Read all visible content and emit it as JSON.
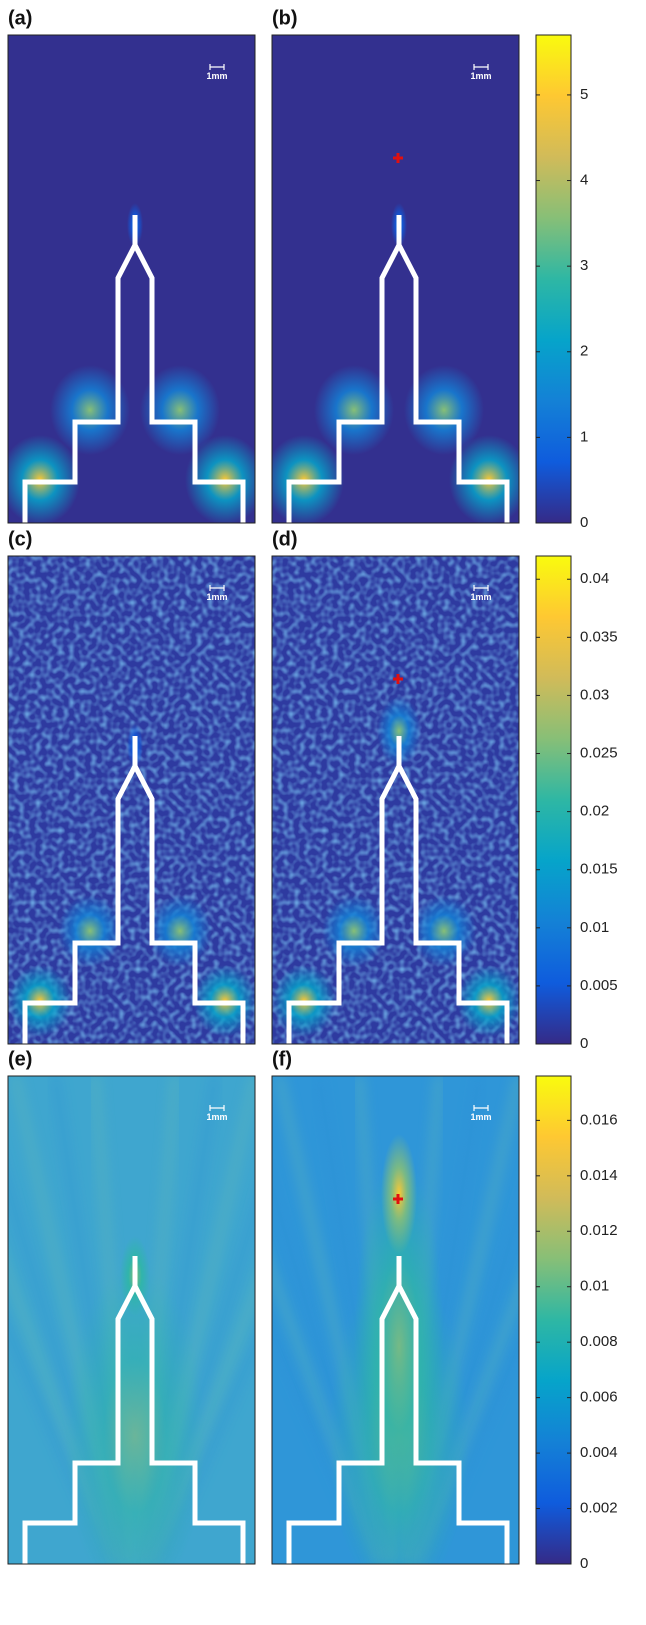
{
  "colormap": [
    "#352a87",
    "#0f5cdd",
    "#1481d6",
    "#06a4ca",
    "#2eb7a4",
    "#87bf77",
    "#d1bb59",
    "#fec832",
    "#f9fb0e"
  ],
  "chart_data": [
    {
      "type": "heatmap",
      "style": "smooth",
      "panels": [
        "(a)",
        "(b)"
      ],
      "scale_label": "1mm",
      "clim": [
        0,
        5.7
      ],
      "cticks": [
        0,
        1,
        2,
        3,
        4,
        5
      ]
    },
    {
      "type": "heatmap",
      "style": "noisy",
      "panels": [
        "(c)",
        "(d)"
      ],
      "scale_label": "1mm",
      "clim": [
        0,
        0.042
      ],
      "cticks": [
        0,
        0.005,
        0.01,
        0.015,
        0.02,
        0.025,
        0.03,
        0.035,
        0.04
      ]
    },
    {
      "type": "heatmap",
      "style": "diffuse",
      "panels": [
        "(e)",
        "(f)"
      ],
      "scale_label": "1mm",
      "clim": [
        0,
        0.0176
      ],
      "cticks": [
        0,
        0.002,
        0.004,
        0.006,
        0.008,
        0.01,
        0.012,
        0.014,
        0.016
      ]
    }
  ]
}
